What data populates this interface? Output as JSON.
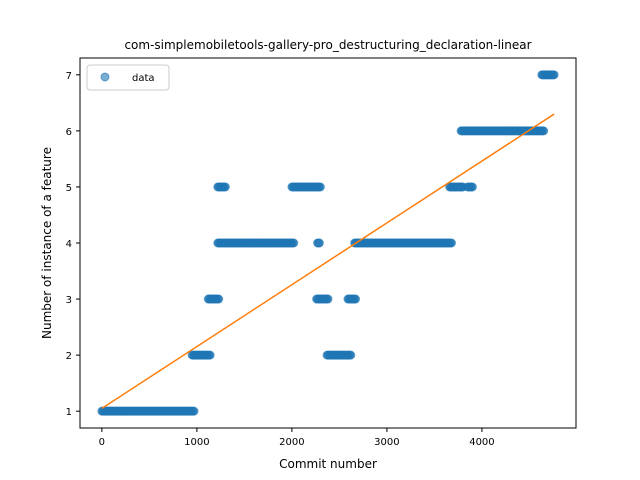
{
  "chart_data": {
    "type": "scatter",
    "title": "com-simplemobiletools-gallery-pro_destructuring_declaration-linear",
    "xlabel": "Commit number",
    "ylabel": "Number of instance of a feature",
    "xlim": [
      -230,
      4990
    ],
    "ylim": [
      0.7,
      7.3
    ],
    "xticks": [
      0,
      1000,
      2000,
      3000,
      4000
    ],
    "yticks": [
      1,
      2,
      3,
      4,
      5,
      6,
      7
    ],
    "grid": false,
    "legend": {
      "position": "top-left",
      "entries": [
        "data"
      ]
    },
    "colors": {
      "scatter": "#1f77b4",
      "fit": "#ff7f0e"
    },
    "series": [
      {
        "name": "data",
        "kind": "scatter",
        "segments": [
          {
            "x_start": 0,
            "x_end": 970,
            "y": 1
          },
          {
            "x_start": 950,
            "x_end": 1140,
            "y": 2
          },
          {
            "x_start": 1120,
            "x_end": 1230,
            "y": 3
          },
          {
            "x_start": 1220,
            "x_end": 1280,
            "y": 4
          },
          {
            "x_start": 1220,
            "x_end": 1300,
            "y": 5
          },
          {
            "x_start": 1290,
            "x_end": 2020,
            "y": 4
          },
          {
            "x_start": 2000,
            "x_end": 2300,
            "y": 5
          },
          {
            "x_start": 2270,
            "x_end": 2290,
            "y": 4
          },
          {
            "x_start": 2260,
            "x_end": 2380,
            "y": 3
          },
          {
            "x_start": 2370,
            "x_end": 2620,
            "y": 2
          },
          {
            "x_start": 2590,
            "x_end": 2670,
            "y": 3
          },
          {
            "x_start": 2660,
            "x_end": 3680,
            "y": 4
          },
          {
            "x_start": 3660,
            "x_end": 3800,
            "y": 5
          },
          {
            "x_start": 3850,
            "x_end": 3900,
            "y": 5
          },
          {
            "x_start": 3780,
            "x_end": 4650,
            "y": 6
          },
          {
            "x_start": 4630,
            "x_end": 4760,
            "y": 7
          }
        ]
      },
      {
        "name": "",
        "kind": "line",
        "x": [
          0,
          4760
        ],
        "y": [
          1.05,
          6.3
        ]
      }
    ]
  }
}
